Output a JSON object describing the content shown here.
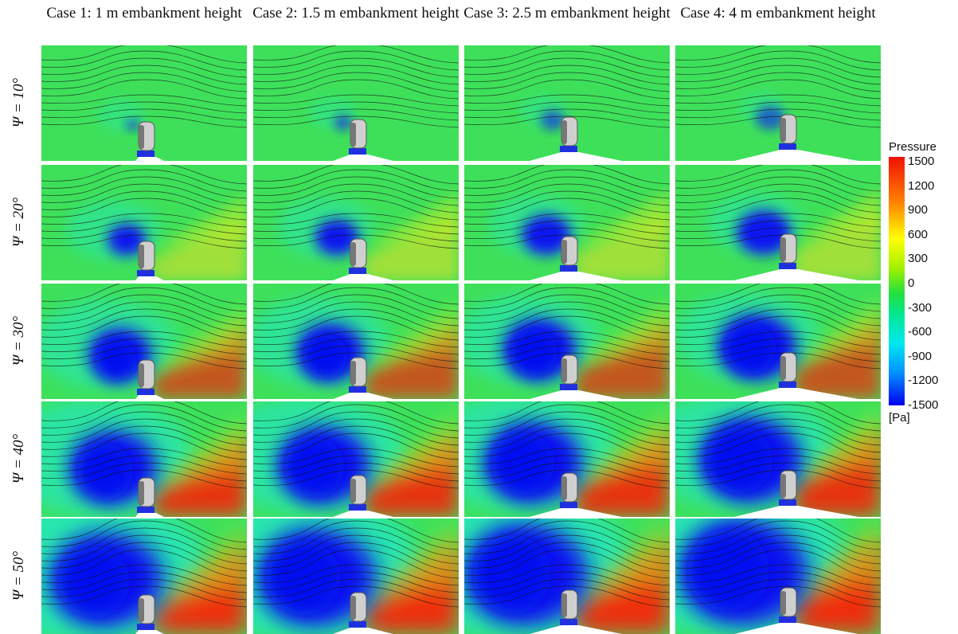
{
  "columns": [
    {
      "title": "Case 1: 1 m embankment height"
    },
    {
      "title": "Case 2: 1.5 m embankment height"
    },
    {
      "title": "Case 3: 2.5 m embankment height"
    },
    {
      "title": "Case 4: 4 m embankment height"
    }
  ],
  "rows": [
    {
      "label": "Ψ = 10°"
    },
    {
      "label": "Ψ = 20°"
    },
    {
      "label": "Ψ = 30°"
    },
    {
      "label": "Ψ = 40°"
    },
    {
      "label": "Ψ = 50°"
    }
  ],
  "legend": {
    "title": "Pressure",
    "ticks": [
      1500,
      1200,
      900,
      600,
      300,
      0,
      -300,
      -600,
      -900,
      -1200,
      -1500
    ],
    "unit": "[Pa]"
  }
}
